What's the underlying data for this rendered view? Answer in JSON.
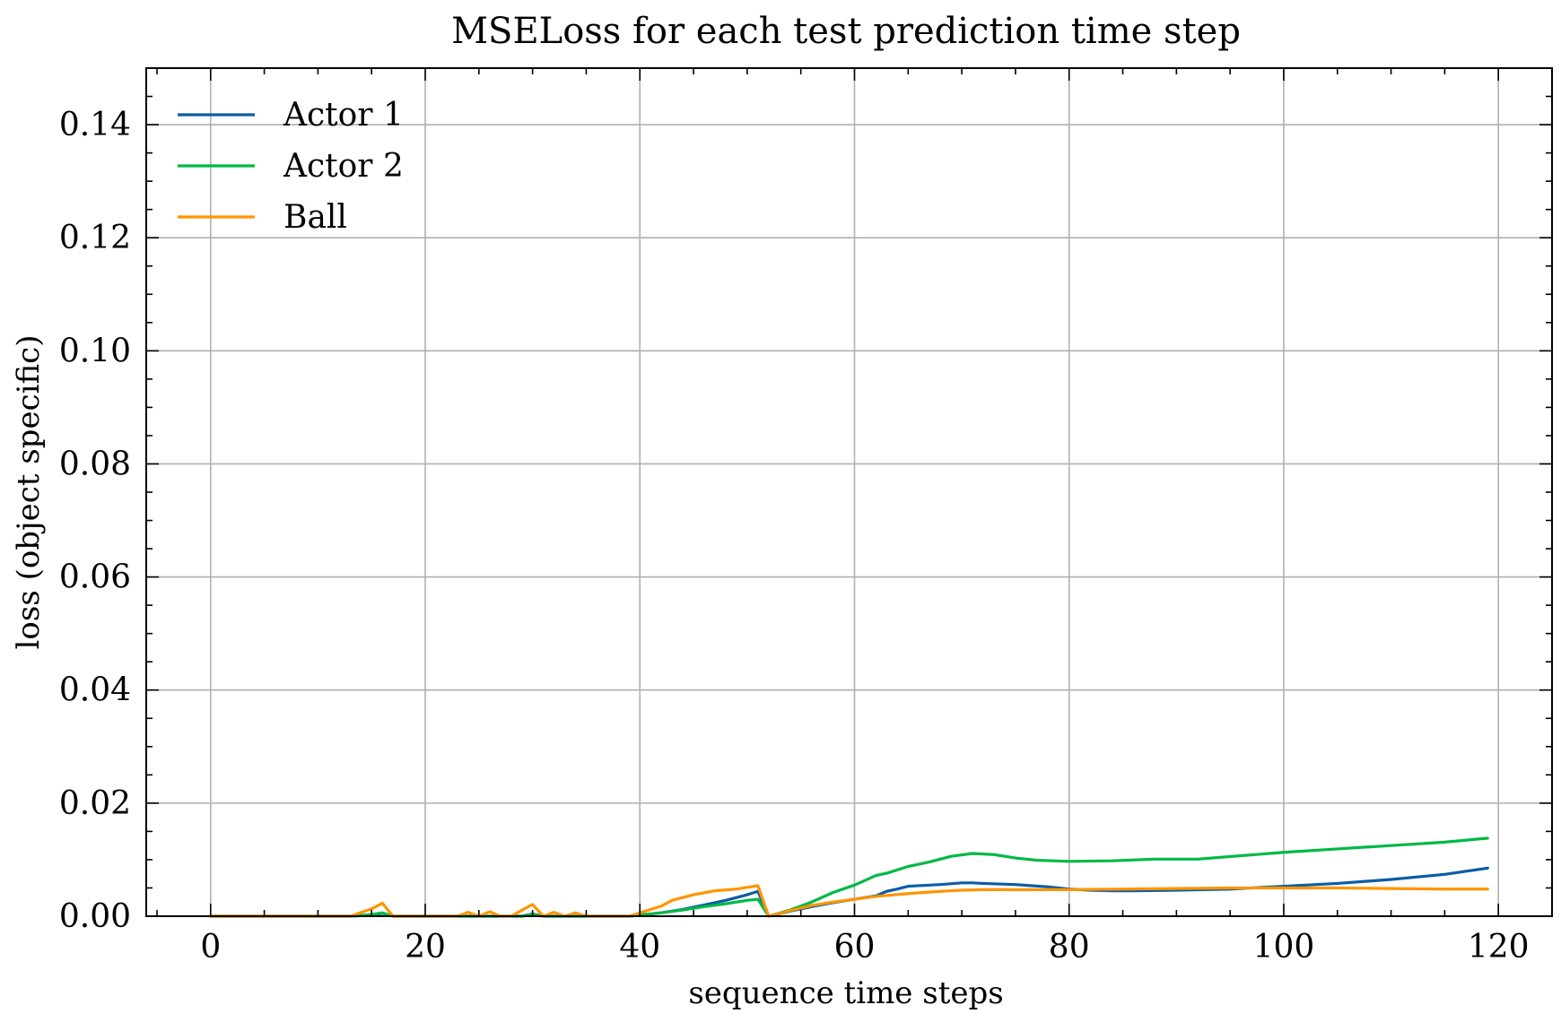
{
  "chart_data": {
    "type": "line",
    "title": "MSELoss for each test prediction time step",
    "xlabel": "sequence time steps",
    "ylabel": "loss (object specific)",
    "xlim": [
      -6,
      125
    ],
    "ylim": [
      0,
      0.15
    ],
    "x_ticks": [
      0,
      20,
      40,
      60,
      80,
      100,
      120
    ],
    "x_tick_labels": [
      "0",
      "20",
      "40",
      "60",
      "80",
      "100",
      "120"
    ],
    "y_ticks": [
      0,
      0.02,
      0.04,
      0.06,
      0.08,
      0.1,
      0.12,
      0.14
    ],
    "y_tick_labels": [
      "0.00",
      "0.02",
      "0.04",
      "0.06",
      "0.08",
      "0.10",
      "0.12",
      "0.14"
    ],
    "grid": true,
    "legend_position": "top-left",
    "series": [
      {
        "name": "Actor 1",
        "color": "#0C5DA5",
        "points": [
          [
            0,
            0
          ],
          [
            13,
            0
          ],
          [
            15,
            0.0002
          ],
          [
            16,
            0.0005
          ],
          [
            17,
            0
          ],
          [
            29,
            0
          ],
          [
            30,
            0.0004
          ],
          [
            31,
            0
          ],
          [
            39,
            0
          ],
          [
            40,
            0.0002
          ],
          [
            42,
            0.0006
          ],
          [
            44,
            0.0012
          ],
          [
            46,
            0.002
          ],
          [
            48,
            0.0028
          ],
          [
            50,
            0.0038
          ],
          [
            51,
            0.0044
          ],
          [
            52,
            0
          ],
          [
            54,
            0.0009
          ],
          [
            56,
            0.0017
          ],
          [
            58,
            0.0024
          ],
          [
            60,
            0.003
          ],
          [
            62,
            0.0036
          ],
          [
            63,
            0.0044
          ],
          [
            64,
            0.0048
          ],
          [
            65,
            0.0053
          ],
          [
            66,
            0.0054
          ],
          [
            68,
            0.0056
          ],
          [
            70,
            0.0059
          ],
          [
            71,
            0.0059
          ],
          [
            72,
            0.0058
          ],
          [
            75,
            0.0056
          ],
          [
            78,
            0.0052
          ],
          [
            80,
            0.0048
          ],
          [
            82,
            0.0046
          ],
          [
            84,
            0.0045
          ],
          [
            86,
            0.0045
          ],
          [
            90,
            0.0046
          ],
          [
            95,
            0.0048
          ],
          [
            100,
            0.0053
          ],
          [
            105,
            0.0058
          ],
          [
            110,
            0.0065
          ],
          [
            115,
            0.0074
          ],
          [
            119,
            0.0085
          ]
        ]
      },
      {
        "name": "Actor 2",
        "color": "#00B945",
        "points": [
          [
            0,
            0
          ],
          [
            13,
            0
          ],
          [
            15,
            0.0003
          ],
          [
            16,
            0.0006
          ],
          [
            17,
            0
          ],
          [
            29,
            0
          ],
          [
            30,
            0.0003
          ],
          [
            31,
            0
          ],
          [
            39,
            0
          ],
          [
            40,
            0.0002
          ],
          [
            42,
            0.0006
          ],
          [
            44,
            0.0011
          ],
          [
            46,
            0.0017
          ],
          [
            48,
            0.0022
          ],
          [
            50,
            0.0028
          ],
          [
            51,
            0.003
          ],
          [
            52,
            0
          ],
          [
            54,
            0.0011
          ],
          [
            56,
            0.0025
          ],
          [
            58,
            0.0042
          ],
          [
            60,
            0.0055
          ],
          [
            62,
            0.0072
          ],
          [
            63,
            0.0076
          ],
          [
            65,
            0.0088
          ],
          [
            67,
            0.0096
          ],
          [
            69,
            0.0106
          ],
          [
            71,
            0.0111
          ],
          [
            73,
            0.0109
          ],
          [
            75,
            0.0103
          ],
          [
            77,
            0.0099
          ],
          [
            80,
            0.0097
          ],
          [
            84,
            0.0098
          ],
          [
            88,
            0.0101
          ],
          [
            92,
            0.0101
          ],
          [
            96,
            0.0107
          ],
          [
            100,
            0.0113
          ],
          [
            105,
            0.0119
          ],
          [
            110,
            0.0125
          ],
          [
            115,
            0.0131
          ],
          [
            119,
            0.0138
          ]
        ]
      },
      {
        "name": "Ball",
        "color": "#FF9500",
        "points": [
          [
            0,
            0
          ],
          [
            13,
            0
          ],
          [
            15,
            0.0013
          ],
          [
            16,
            0.0023
          ],
          [
            17,
            0
          ],
          [
            23,
            0
          ],
          [
            24,
            0.0007
          ],
          [
            25,
            0
          ],
          [
            26,
            0.0008
          ],
          [
            27,
            0
          ],
          [
            28,
            0
          ],
          [
            30,
            0.0021
          ],
          [
            31,
            0
          ],
          [
            32,
            0.0007
          ],
          [
            33,
            0
          ],
          [
            34,
            0.0006
          ],
          [
            35,
            0
          ],
          [
            39,
            0
          ],
          [
            40,
            0.0006
          ],
          [
            42,
            0.0018
          ],
          [
            43,
            0.0028
          ],
          [
            45,
            0.0038
          ],
          [
            47,
            0.0045
          ],
          [
            49,
            0.0048
          ],
          [
            51,
            0.0054
          ],
          [
            52,
            0
          ],
          [
            54,
            0.001
          ],
          [
            56,
            0.0019
          ],
          [
            58,
            0.0025
          ],
          [
            60,
            0.003
          ],
          [
            62,
            0.0035
          ],
          [
            65,
            0.004
          ],
          [
            68,
            0.0044
          ],
          [
            70,
            0.0046
          ],
          [
            72,
            0.0047
          ],
          [
            75,
            0.0047
          ],
          [
            80,
            0.0047
          ],
          [
            85,
            0.0048
          ],
          [
            90,
            0.0049
          ],
          [
            95,
            0.005
          ],
          [
            100,
            0.005
          ],
          [
            105,
            0.005
          ],
          [
            110,
            0.0049
          ],
          [
            115,
            0.0048
          ],
          [
            119,
            0.0048
          ]
        ]
      }
    ]
  }
}
